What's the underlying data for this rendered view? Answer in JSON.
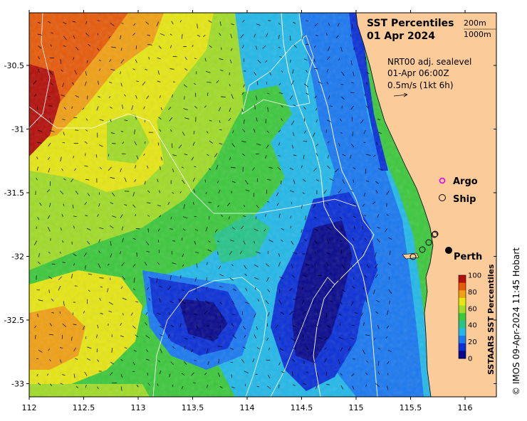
{
  "map": {
    "title_line1": "SST Percentiles",
    "title_line2": "01 Apr 2024",
    "isobath_labels": [
      "200m",
      "1000m"
    ],
    "info_line1": "NRT00 adj. sealevel",
    "info_line2": "01-Apr 06:00Z",
    "info_line3": "0.5m/s (1kt 6h)",
    "legend_argo": "Argo",
    "legend_ship": "Ship",
    "city_label": "Perth",
    "credit": "© IMOS 09-Apr-2024 11:45 Hobart",
    "colorbar_title": "SSTAARS SST Percentiles",
    "colorbar_ticks": [
      "0",
      "20",
      "40",
      "60",
      "80",
      "100"
    ],
    "colorbar_colors": [
      "#08088c",
      "#0a2fd6",
      "#1a78f0",
      "#23b8e8",
      "#27c48a",
      "#3cc83c",
      "#a0dc28",
      "#e6e614",
      "#f0a014",
      "#e65a0a",
      "#b40f0a"
    ],
    "x_ticks": [
      "112",
      "112.5",
      "113",
      "113.5",
      "114",
      "114.5",
      "115",
      "115.5",
      "116"
    ],
    "y_ticks": [
      "-30.5",
      "-31",
      "-31.5",
      "-32",
      "-32.5",
      "-33"
    ],
    "land_color": "#fccb9a"
  }
}
